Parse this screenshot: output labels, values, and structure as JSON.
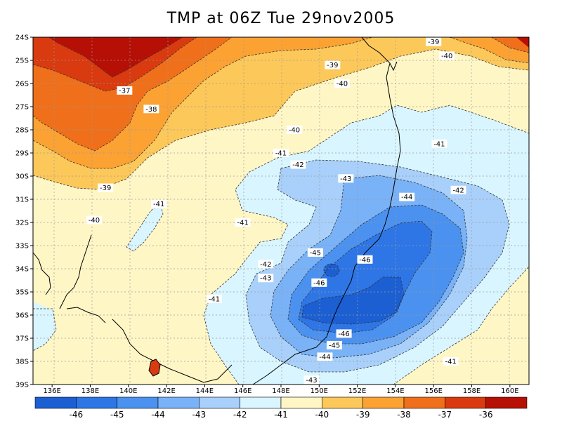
{
  "title": "TMP at 06Z Tue 29nov2005",
  "colors": {
    "-46": "#1b5fd3",
    "-45": "#2e76e6",
    "-44": "#4b91ef",
    "-43": "#79b2f7",
    "-42": "#a8d0fa",
    "-41": "#d9f5ff",
    "-40": "#fff6c6",
    "-39": "#fdc85a",
    "-38": "#fba233",
    "-37": "#f06f1a",
    "-36": "#d93a0f",
    "-35": "#b60f05"
  },
  "lat_labels": [
    "24S",
    "25S",
    "26S",
    "27S",
    "28S",
    "29S",
    "30S",
    "31S",
    "32S",
    "33S",
    "34S",
    "35S",
    "36S",
    "37S",
    "38S",
    "39S"
  ],
  "lon_labels": [
    "136E",
    "138E",
    "140E",
    "142E",
    "144E",
    "146E",
    "148E",
    "150E",
    "152E",
    "154E",
    "156E",
    "158E",
    "160E"
  ],
  "contour_labels": [
    {
      "text": "-37",
      "lon": 139.8,
      "lat": -26.3
    },
    {
      "text": "-38",
      "lon": 141.2,
      "lat": -27.1
    },
    {
      "text": "-39",
      "lon": 138.8,
      "lat": -30.5
    },
    {
      "text": "-40",
      "lon": 138.2,
      "lat": -31.9
    },
    {
      "text": "-41",
      "lon": 141.6,
      "lat": -31.2
    },
    {
      "text": "-41",
      "lon": 146.0,
      "lat": -32.0
    },
    {
      "text": "-39",
      "lon": 150.7,
      "lat": -25.2
    },
    {
      "text": "-40",
      "lon": 151.2,
      "lat": -26.0
    },
    {
      "text": "-40",
      "lon": 148.7,
      "lat": -28.0
    },
    {
      "text": "-41",
      "lon": 148.0,
      "lat": -29.0
    },
    {
      "text": "-42",
      "lon": 148.9,
      "lat": -29.5
    },
    {
      "text": "-43",
      "lon": 151.4,
      "lat": -30.1
    },
    {
      "text": "-44",
      "lon": 154.6,
      "lat": -30.9
    },
    {
      "text": "-42",
      "lon": 157.3,
      "lat": -30.6
    },
    {
      "text": "-41",
      "lon": 156.3,
      "lat": -28.6
    },
    {
      "text": "-39",
      "lon": 156.0,
      "lat": -24.2
    },
    {
      "text": "-40",
      "lon": 156.7,
      "lat": -24.8
    },
    {
      "text": "-45",
      "lon": 149.8,
      "lat": -33.3
    },
    {
      "text": "-46",
      "lon": 152.4,
      "lat": -33.6
    },
    {
      "text": "-46",
      "lon": 150.0,
      "lat": -34.6
    },
    {
      "text": "-42",
      "lon": 147.2,
      "lat": -33.8
    },
    {
      "text": "-43",
      "lon": 147.2,
      "lat": -34.4
    },
    {
      "text": "-41",
      "lon": 144.5,
      "lat": -35.3
    },
    {
      "text": "-46",
      "lon": 151.3,
      "lat": -36.8
    },
    {
      "text": "-45",
      "lon": 150.8,
      "lat": -37.3
    },
    {
      "text": "-44",
      "lon": 150.3,
      "lat": -37.8
    },
    {
      "text": "-43",
      "lon": 149.6,
      "lat": -38.8
    },
    {
      "text": "-41",
      "lon": 156.9,
      "lat": -38.0
    }
  ],
  "colorbar": {
    "levels": [
      "-46",
      "-45",
      "-44",
      "-43",
      "-42",
      "-41",
      "-40",
      "-39",
      "-38",
      "-37",
      "-36"
    ],
    "fills": [
      "-46",
      "-45",
      "-44",
      "-43",
      "-42",
      "-41",
      "-40",
      "-39",
      "-38",
      "-37",
      "-36",
      "-35"
    ]
  }
}
